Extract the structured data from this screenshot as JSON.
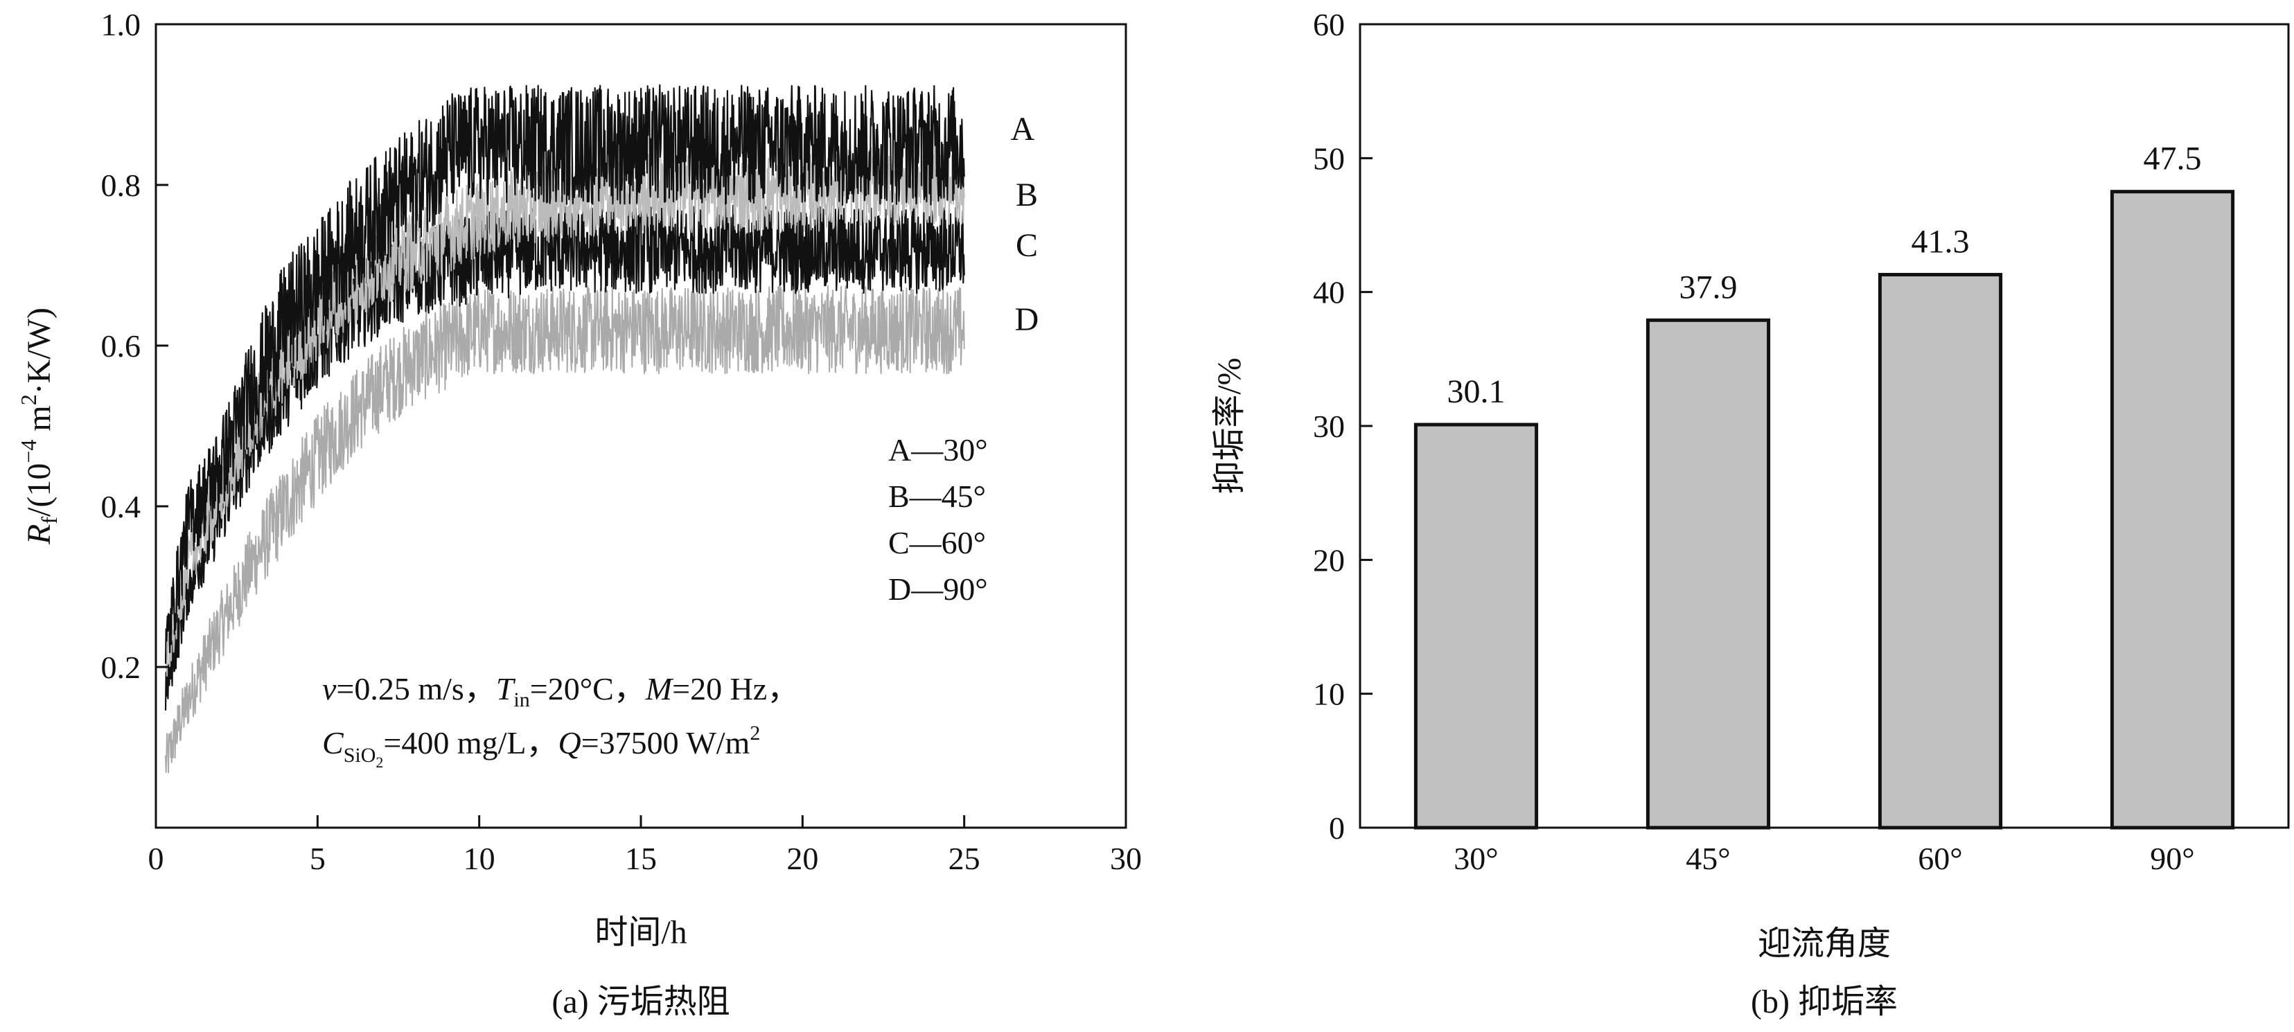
{
  "chart_data": [
    {
      "type": "line",
      "caption": "(a) 污垢热阻",
      "xlabel": "时间/h",
      "ylabel": {
        "symbol": "R",
        "subscript": "f",
        "unit_prefix": "/(10",
        "unit_exp": "−4",
        "unit_mid": " m",
        "unit_sq": "2",
        "unit_suffix": "·K/W)"
      },
      "xlim": [
        0,
        30
      ],
      "ylim": [
        0,
        1.0
      ],
      "x_ticks": [
        "0",
        "5",
        "10",
        "15",
        "20",
        "25",
        "30"
      ],
      "y_ticks": [
        "0.2",
        "0.4",
        "0.6",
        "0.8",
        "1.0"
      ],
      "series_letters": [
        "A",
        "B",
        "C",
        "D"
      ],
      "legend": [
        "A—30°",
        "B—45°",
        "C—60°",
        "D—90°"
      ],
      "conditions": {
        "line1": {
          "v_sym": "v",
          "v_val": "=0.25 m/s，",
          "t_sym": "T",
          "t_sub": "in",
          "t_val": "=20°C，",
          "m_sym": "M",
          "m_val": "=20 Hz，"
        },
        "line2": {
          "c_sym": "C",
          "c_sub": "SiO",
          "c_sub2": "2",
          "c_val": "=400 mg/L，",
          "q_sym": "Q",
          "q_val": "=37500 W/m",
          "q_sup": "2"
        }
      },
      "series": [
        {
          "key": "A",
          "color": "#111111",
          "points": [
            [
              0.3,
              0.22
            ],
            [
              1,
              0.38
            ],
            [
              2,
              0.45
            ],
            [
              3,
              0.55
            ],
            [
              4,
              0.63
            ],
            [
              5,
              0.68
            ],
            [
              6,
              0.73
            ],
            [
              7,
              0.77
            ],
            [
              8,
              0.8
            ],
            [
              9,
              0.84
            ],
            [
              10,
              0.85
            ],
            [
              12,
              0.85
            ],
            [
              14,
              0.85
            ],
            [
              16,
              0.85
            ],
            [
              18,
              0.85
            ],
            [
              20,
              0.85
            ],
            [
              22,
              0.85
            ],
            [
              24,
              0.85
            ],
            [
              25,
              0.85
            ]
          ]
        },
        {
          "key": "B",
          "color": "#bbbbbb",
          "points": [
            [
              0.3,
              0.2
            ],
            [
              1,
              0.33
            ],
            [
              2,
              0.41
            ],
            [
              3,
              0.51
            ],
            [
              4,
              0.58
            ],
            [
              5,
              0.63
            ],
            [
              6,
              0.67
            ],
            [
              7,
              0.7
            ],
            [
              8,
              0.72
            ],
            [
              9,
              0.74
            ],
            [
              10,
              0.76
            ],
            [
              12,
              0.78
            ],
            [
              14,
              0.79
            ],
            [
              16,
              0.79
            ],
            [
              18,
              0.79
            ],
            [
              20,
              0.79
            ],
            [
              22,
              0.8
            ],
            [
              24,
              0.8
            ],
            [
              25,
              0.8
            ]
          ]
        },
        {
          "key": "C",
          "color": "#111111",
          "points": [
            [
              0.3,
              0.17
            ],
            [
              1,
              0.3
            ],
            [
              2,
              0.39
            ],
            [
              3,
              0.48
            ],
            [
              4,
              0.55
            ],
            [
              5,
              0.6
            ],
            [
              6,
              0.64
            ],
            [
              7,
              0.67
            ],
            [
              8,
              0.69
            ],
            [
              9,
              0.7
            ],
            [
              10,
              0.71
            ],
            [
              12,
              0.72
            ],
            [
              14,
              0.72
            ],
            [
              16,
              0.72
            ],
            [
              18,
              0.72
            ],
            [
              20,
              0.72
            ],
            [
              22,
              0.72
            ],
            [
              24,
              0.72
            ],
            [
              25,
              0.72
            ]
          ]
        },
        {
          "key": "D",
          "color": "#aaaaaa",
          "points": [
            [
              0.3,
              0.08
            ],
            [
              1,
              0.16
            ],
            [
              2,
              0.25
            ],
            [
              3,
              0.33
            ],
            [
              4,
              0.4
            ],
            [
              5,
              0.46
            ],
            [
              6,
              0.51
            ],
            [
              7,
              0.55
            ],
            [
              8,
              0.58
            ],
            [
              9,
              0.6
            ],
            [
              10,
              0.62
            ],
            [
              12,
              0.62
            ],
            [
              14,
              0.62
            ],
            [
              16,
              0.62
            ],
            [
              18,
              0.62
            ],
            [
              20,
              0.62
            ],
            [
              22,
              0.62
            ],
            [
              24,
              0.62
            ],
            [
              25,
              0.62
            ]
          ]
        }
      ]
    },
    {
      "type": "bar",
      "caption": "(b) 抑垢率",
      "xlabel": "迎流角度",
      "ylabel": "抑垢率/%",
      "ylim": [
        0,
        60
      ],
      "y_ticks": [
        "0",
        "10",
        "20",
        "30",
        "40",
        "50",
        "60"
      ],
      "categories": [
        "30°",
        "45°",
        "60°",
        "90°"
      ],
      "values": [
        30.1,
        37.9,
        41.3,
        47.5
      ],
      "value_labels": [
        "30.1",
        "37.9",
        "41.3",
        "47.5"
      ],
      "bar_color": "#c0c0c0"
    }
  ]
}
